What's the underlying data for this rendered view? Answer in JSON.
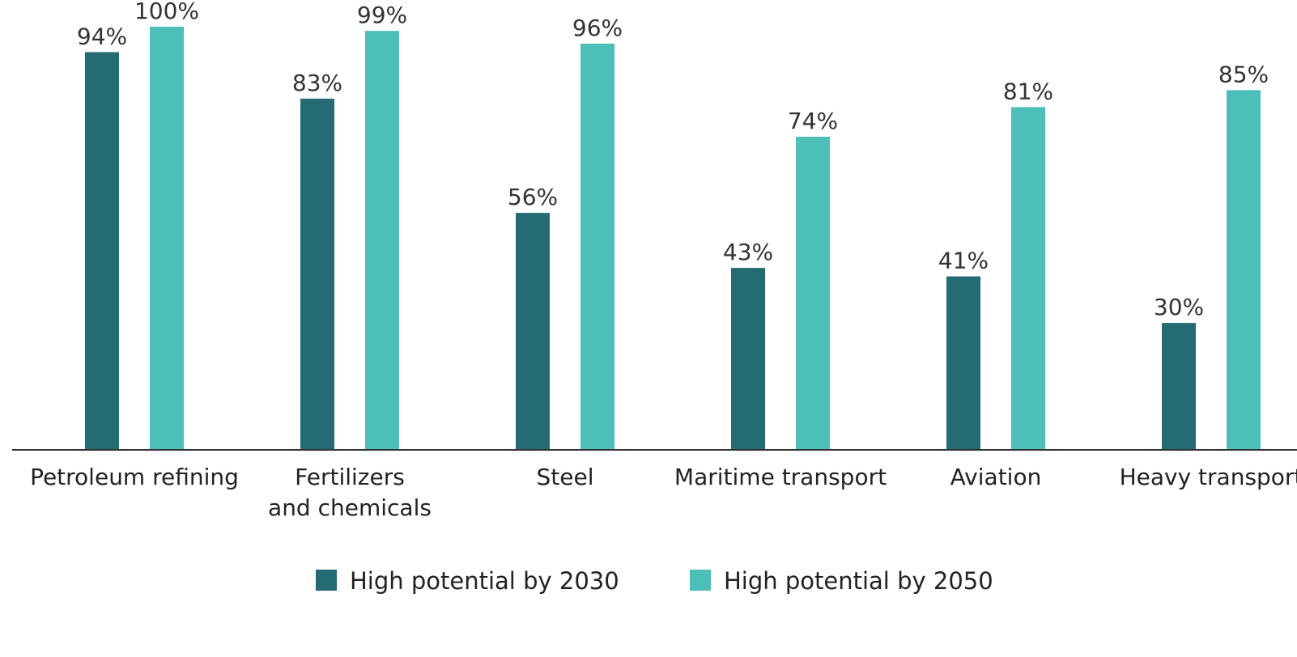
{
  "chart_data": {
    "type": "bar",
    "categories": [
      "Petroleum refining",
      [
        "Fertilizers",
        "and chemicals"
      ],
      "Steel",
      "Maritime transport",
      "Aviation",
      "Heavy transport"
    ],
    "series": [
      {
        "name": "High potential by 2030",
        "values": [
          94,
          83,
          56,
          43,
          41,
          30
        ],
        "color": "#256b74"
      },
      {
        "name": "High potential by 2050",
        "values": [
          100,
          99,
          96,
          74,
          81,
          85
        ],
        "color": "#4dbfb9"
      }
    ],
    "value_suffix": "%",
    "title": "",
    "xlabel": "",
    "ylabel": "",
    "ylim": [
      0,
      100
    ],
    "grid": false,
    "legend_position": "bottom"
  }
}
